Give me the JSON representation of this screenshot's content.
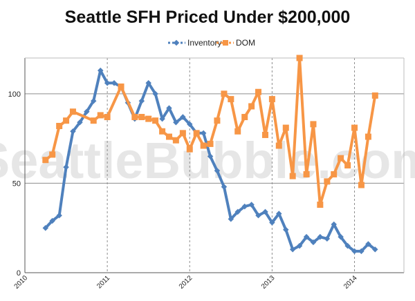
{
  "watermark": "SeattleBubble.com",
  "colors": {
    "inventory": "#4f81bd",
    "dom": "#f79646",
    "grid": "#8c8c8c",
    "axis": "#555555"
  },
  "chart_data": {
    "type": "line",
    "title": "Seattle SFH Priced Under $200,000",
    "xlabel": "",
    "ylabel": "",
    "grid": true,
    "legend": "top-center",
    "xlim": [
      2010,
      2014.6
    ],
    "ylim": [
      0,
      120
    ],
    "y_ticks": [
      0,
      50,
      100
    ],
    "x_ticks": [
      2010,
      2011,
      2012,
      2013,
      2014
    ],
    "x_tick_labels": [
      "2010",
      "2011",
      "2012",
      "2013",
      "2014"
    ],
    "series": [
      {
        "name": "Inventory",
        "marker": "diamond",
        "x": [
          2010.25,
          2010.333,
          2010.417,
          2010.5,
          2010.583,
          2010.667,
          2010.75,
          2010.833,
          2010.917,
          2011.0,
          2011.083,
          2011.167,
          2011.25,
          2011.333,
          2011.417,
          2011.5,
          2011.583,
          2011.667,
          2011.75,
          2011.833,
          2011.917,
          2012.0,
          2012.083,
          2012.167,
          2012.25,
          2012.333,
          2012.417,
          2012.5,
          2012.583,
          2012.667,
          2012.75,
          2012.833,
          2012.917,
          2013.0,
          2013.083,
          2013.167,
          2013.25,
          2013.333,
          2013.417,
          2013.5,
          2013.583,
          2013.667,
          2013.75,
          2013.833,
          2013.917,
          2014.0,
          2014.083,
          2014.167,
          2014.25
        ],
        "y": [
          25,
          29,
          32,
          59,
          79,
          84,
          90,
          96,
          113,
          106,
          106,
          104,
          95,
          86,
          96,
          106,
          100,
          86,
          92,
          84,
          87,
          83,
          78,
          78,
          65,
          57,
          48,
          30,
          34,
          37,
          38,
          32,
          34,
          28,
          33,
          24,
          13,
          15,
          20,
          17,
          20,
          19,
          27,
          20,
          15,
          12,
          12,
          16,
          13
        ]
      },
      {
        "name": "DOM",
        "marker": "square",
        "x": [
          2010.25,
          2010.333,
          2010.417,
          2010.5,
          2010.583,
          2010.833,
          2010.917,
          2011.0,
          2011.167,
          2011.333,
          2011.417,
          2011.5,
          2011.583,
          2011.667,
          2011.75,
          2011.833,
          2011.917,
          2012.0,
          2012.083,
          2012.167,
          2012.25,
          2012.333,
          2012.417,
          2012.5,
          2012.583,
          2012.667,
          2012.75,
          2012.833,
          2012.917,
          2013.0,
          2013.083,
          2013.167,
          2013.25,
          2013.333,
          2013.417,
          2013.5,
          2013.583,
          2013.667,
          2013.75,
          2013.833,
          2013.917,
          2014.0,
          2014.083,
          2014.167,
          2014.25
        ],
        "y": [
          63,
          66,
          82,
          85,
          90,
          85,
          88,
          87,
          104,
          87,
          87,
          86,
          85,
          79,
          76,
          74,
          78,
          69,
          78,
          71,
          72,
          85,
          100,
          97,
          79,
          87,
          93,
          101,
          77,
          97,
          71,
          81,
          54,
          120,
          55,
          83,
          38,
          51,
          55,
          64,
          60,
          81,
          49,
          76,
          99
        ]
      }
    ]
  }
}
